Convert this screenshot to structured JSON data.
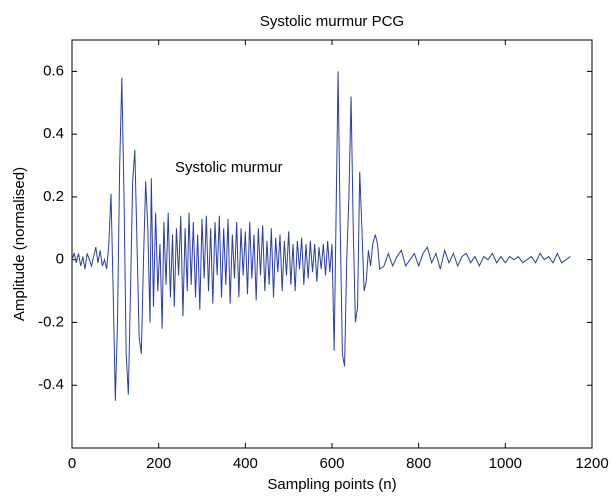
{
  "chart_data": {
    "type": "line",
    "title": "Systolic murmur PCG",
    "xlabel": "Sampling points (n)",
    "ylabel": "Amplitude (normalised)",
    "annotation": "Systolic murmur",
    "color": "#2b3f9e",
    "xlim": [
      0,
      1200
    ],
    "xticks": [
      0,
      200,
      400,
      600,
      800,
      1000,
      1200
    ],
    "ylim": [
      -0.6,
      0.7
    ],
    "yticks": [
      -0.4,
      -0.2,
      0,
      0.2,
      0.4,
      0.6
    ],
    "grid": false,
    "x": [
      0,
      5,
      10,
      15,
      20,
      25,
      30,
      35,
      40,
      45,
      50,
      55,
      60,
      65,
      70,
      75,
      80,
      85,
      90,
      95,
      100,
      105,
      110,
      115,
      120,
      125,
      130,
      135,
      140,
      145,
      150,
      155,
      160,
      165,
      170,
      175,
      180,
      183,
      188,
      193,
      198,
      203,
      208,
      212,
      217,
      222,
      227,
      232,
      236,
      241,
      246,
      251,
      256,
      261,
      266,
      270,
      275,
      280,
      285,
      290,
      295,
      300,
      305,
      310,
      315,
      320,
      325,
      330,
      335,
      340,
      345,
      350,
      355,
      360,
      365,
      370,
      375,
      380,
      385,
      390,
      395,
      400,
      405,
      410,
      415,
      420,
      425,
      430,
      435,
      440,
      445,
      450,
      455,
      460,
      465,
      470,
      475,
      480,
      485,
      490,
      495,
      500,
      505,
      510,
      515,
      520,
      525,
      530,
      535,
      540,
      545,
      550,
      555,
      560,
      565,
      570,
      575,
      580,
      585,
      590,
      595,
      600,
      605,
      610,
      614,
      619,
      624,
      629,
      634,
      639,
      644,
      649,
      654,
      659,
      664,
      669,
      674,
      679,
      684,
      689,
      694,
      700,
      705,
      710,
      720,
      730,
      740,
      750,
      760,
      770,
      780,
      790,
      800,
      810,
      820,
      830,
      840,
      850,
      860,
      870,
      880,
      890,
      900,
      910,
      920,
      930,
      940,
      950,
      960,
      970,
      980,
      990,
      1000,
      1010,
      1020,
      1030,
      1040,
      1050,
      1060,
      1070,
      1080,
      1090,
      1100,
      1110,
      1120,
      1130,
      1140,
      1150
    ],
    "values": [
      0,
      0.02,
      -0.01,
      0.02,
      -0.02,
      0.01,
      -0.03,
      0.02,
      0,
      -0.02,
      0.01,
      0.04,
      -0.01,
      0.03,
      -0.02,
      0,
      -0.03,
      0.05,
      0.21,
      -0.1,
      -0.45,
      -0.2,
      0.3,
      0.58,
      0.2,
      -0.3,
      -0.43,
      -0.1,
      0.25,
      0.35,
      0.05,
      -0.25,
      -0.3,
      0,
      0.25,
      0.1,
      -0.2,
      0.26,
      -0.15,
      0.15,
      -0.1,
      0.05,
      -0.22,
      0.12,
      -0.08,
      0.15,
      -0.12,
      0.08,
      -0.15,
      0.1,
      -0.05,
      0.14,
      -0.18,
      0.1,
      -0.1,
      0.15,
      -0.08,
      0.12,
      -0.12,
      0.08,
      -0.16,
      0.13,
      -0.06,
      0.14,
      -0.1,
      0.1,
      -0.14,
      0.12,
      -0.05,
      0.14,
      -0.12,
      0.1,
      -0.08,
      0.13,
      -0.14,
      0.08,
      -0.06,
      0.12,
      -0.12,
      0.1,
      -0.05,
      0.09,
      -0.11,
      0.12,
      -0.06,
      0.08,
      -0.13,
      0.1,
      -0.05,
      0.11,
      -0.1,
      0.06,
      -0.08,
      0.1,
      -0.12,
      0.07,
      -0.04,
      0.08,
      -0.1,
      0.06,
      -0.05,
      0.09,
      -0.08,
      0.05,
      -0.1,
      0.06,
      -0.03,
      0.07,
      -0.08,
      0.05,
      -0.06,
      0.06,
      -0.04,
      0.05,
      -0.07,
      0.04,
      -0.03,
      0.05,
      -0.05,
      0.06,
      -0.04,
      0.05,
      -0.29,
      0.2,
      0.6,
      0.1,
      -0.3,
      -0.34,
      0,
      0.2,
      0.52,
      0.1,
      -0.2,
      -0.15,
      0.28,
      0.1,
      -0.1,
      -0.07,
      0.03,
      -0.02,
      0.05,
      0.08,
      0.05,
      -0.03,
      -0.02,
      0.02,
      -0.02,
      0.01,
      0.03,
      -0.02,
      0,
      0.02,
      -0.02,
      0.02,
      0.04,
      -0.01,
      0.02,
      -0.03,
      0.03,
      -0.01,
      0.02,
      -0.02,
      0.01,
      0.02,
      -0.01,
      0.01,
      -0.02,
      0.01,
      0,
      0.02,
      -0.01,
      0.01,
      -0.01,
      0.01,
      0,
      0.01,
      -0.01,
      0,
      0.01,
      -0.01,
      0.02,
      0,
      0.01,
      -0.01,
      0.02,
      -0.01,
      0,
      0.01
    ]
  }
}
